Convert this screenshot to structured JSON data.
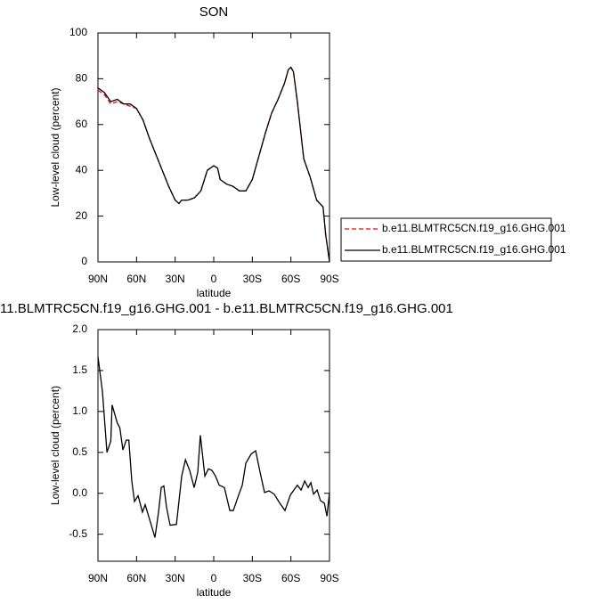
{
  "chart_data": [
    {
      "type": "line",
      "title": "SON",
      "xlabel": "latitude",
      "ylabel": "Low-level cloud (percent)",
      "x": [
        90,
        85,
        80,
        75,
        70,
        65,
        60,
        55,
        50,
        45,
        40,
        35,
        30,
        27,
        25,
        20,
        15,
        10,
        5,
        0,
        -3,
        -5,
        -10,
        -15,
        -20,
        -25,
        -30,
        -35,
        -40,
        -45,
        -50,
        -55,
        -58,
        -60,
        -62,
        -65,
        -70,
        -75,
        -80,
        -85,
        -87,
        -90
      ],
      "series": [
        {
          "name": "b.e11.BLMTRC5CN.f19_g16.GHG.001",
          "color": "#ff0000",
          "dashed": true,
          "values": [
            75,
            73,
            69,
            70,
            69,
            68,
            67,
            62,
            54,
            47,
            40,
            33,
            27,
            25.5,
            27,
            27,
            28,
            31,
            40,
            42,
            41,
            36,
            34,
            33,
            31,
            31,
            36,
            46,
            56,
            65,
            71,
            78,
            84,
            85,
            83,
            70,
            45,
            37,
            27,
            24,
            12,
            0
          ]
        },
        {
          "name": "b.e11.BLMTRC5CN.f19_g16.GHG.001",
          "color": "#000000",
          "dashed": false,
          "values": [
            76,
            74,
            70,
            71,
            69,
            69,
            67,
            62,
            54,
            47,
            40,
            33,
            27,
            25.5,
            27,
            27,
            28,
            31,
            40,
            42,
            41,
            36,
            34,
            33,
            31,
            31,
            36,
            46,
            56,
            65,
            71,
            78,
            84,
            85,
            83,
            70,
            45,
            37,
            27,
            24,
            12,
            0
          ]
        }
      ],
      "xlim": [
        90,
        -90
      ],
      "xticks": [
        {
          "value": 90,
          "label": "90N"
        },
        {
          "value": 60,
          "label": "60N"
        },
        {
          "value": 30,
          "label": "30N"
        },
        0,
        {
          "value": -30,
          "label": "30S"
        },
        {
          "value": -60,
          "label": "60S"
        },
        {
          "value": -90,
          "label": "90S"
        }
      ],
      "ylim": [
        0,
        100
      ],
      "yticks": [
        0,
        20,
        40,
        60,
        80,
        100
      ],
      "legend": "right"
    },
    {
      "type": "line",
      "title": "11.BLMTRC5CN.f19_g16.GHG.001 - b.e11.BLMTRC5CN.f19_g16.GHG.001",
      "xlabel": "latitude",
      "ylabel": "Low-level cloud (percent)",
      "x": [
        90,
        86.5,
        83,
        80,
        79,
        75,
        73,
        70.6,
        68,
        66,
        63.7,
        61.6,
        58.8,
        55.4,
        53.3,
        48.5,
        45.7,
        42.9,
        40.8,
        38.8,
        36.7,
        33.9,
        29,
        24.9,
        22,
        18.7,
        15.2,
        12.4,
        10.4,
        6.9,
        4.1,
        1.4,
        -1.4,
        -4.2,
        -8.3,
        -12.5,
        -15.2,
        -19.4,
        -22.2,
        -25,
        -29.1,
        -32.6,
        -36,
        -39.5,
        -43,
        -47,
        -51.3,
        -55.4,
        -59.6,
        -65,
        -67.9,
        -70.7,
        -73.4,
        -75.5,
        -77.6,
        -80.4,
        -83,
        -86,
        -88,
        -90
      ],
      "series": [
        {
          "name": null,
          "color": "#000000",
          "dashed": false,
          "values": [
            1.67,
            1.24,
            0.5,
            0.64,
            1.08,
            0.86,
            0.8,
            0.53,
            0.65,
            0.65,
            0.15,
            -0.1,
            -0.03,
            -0.23,
            -0.14,
            -0.39,
            -0.54,
            -0.23,
            0.07,
            0.09,
            -0.17,
            -0.39,
            -0.38,
            0.21,
            0.41,
            0.28,
            0.07,
            0.26,
            0.71,
            0.21,
            0.3,
            0.28,
            0.21,
            0.1,
            0.07,
            -0.21,
            -0.21,
            -0.02,
            0.1,
            0.37,
            0.48,
            0.52,
            0.26,
            0.01,
            0.03,
            -0.01,
            -0.12,
            -0.21,
            -0.02,
            0.1,
            0.04,
            0.15,
            0.07,
            0.13,
            -0.01,
            0.04,
            -0.09,
            -0.12,
            -0.28,
            0.01
          ]
        }
      ],
      "xlim": [
        90,
        -90
      ],
      "xticks": [
        {
          "value": 90,
          "label": "90N"
        },
        {
          "value": 60,
          "label": "60N"
        },
        {
          "value": 30,
          "label": "30N"
        },
        0,
        {
          "value": -30,
          "label": "30S"
        },
        {
          "value": -60,
          "label": "60S"
        },
        {
          "value": -90,
          "label": "90S"
        }
      ],
      "ylim": [
        -0.83,
        2.0
      ],
      "yticks": [
        {
          "value": -0.5,
          "label": "-0.5"
        },
        {
          "value": 0,
          "label": "0.0"
        },
        0.5,
        {
          "value": 1,
          "label": "1.0"
        },
        1.5,
        {
          "value": 2,
          "label": "2.0"
        }
      ]
    }
  ]
}
